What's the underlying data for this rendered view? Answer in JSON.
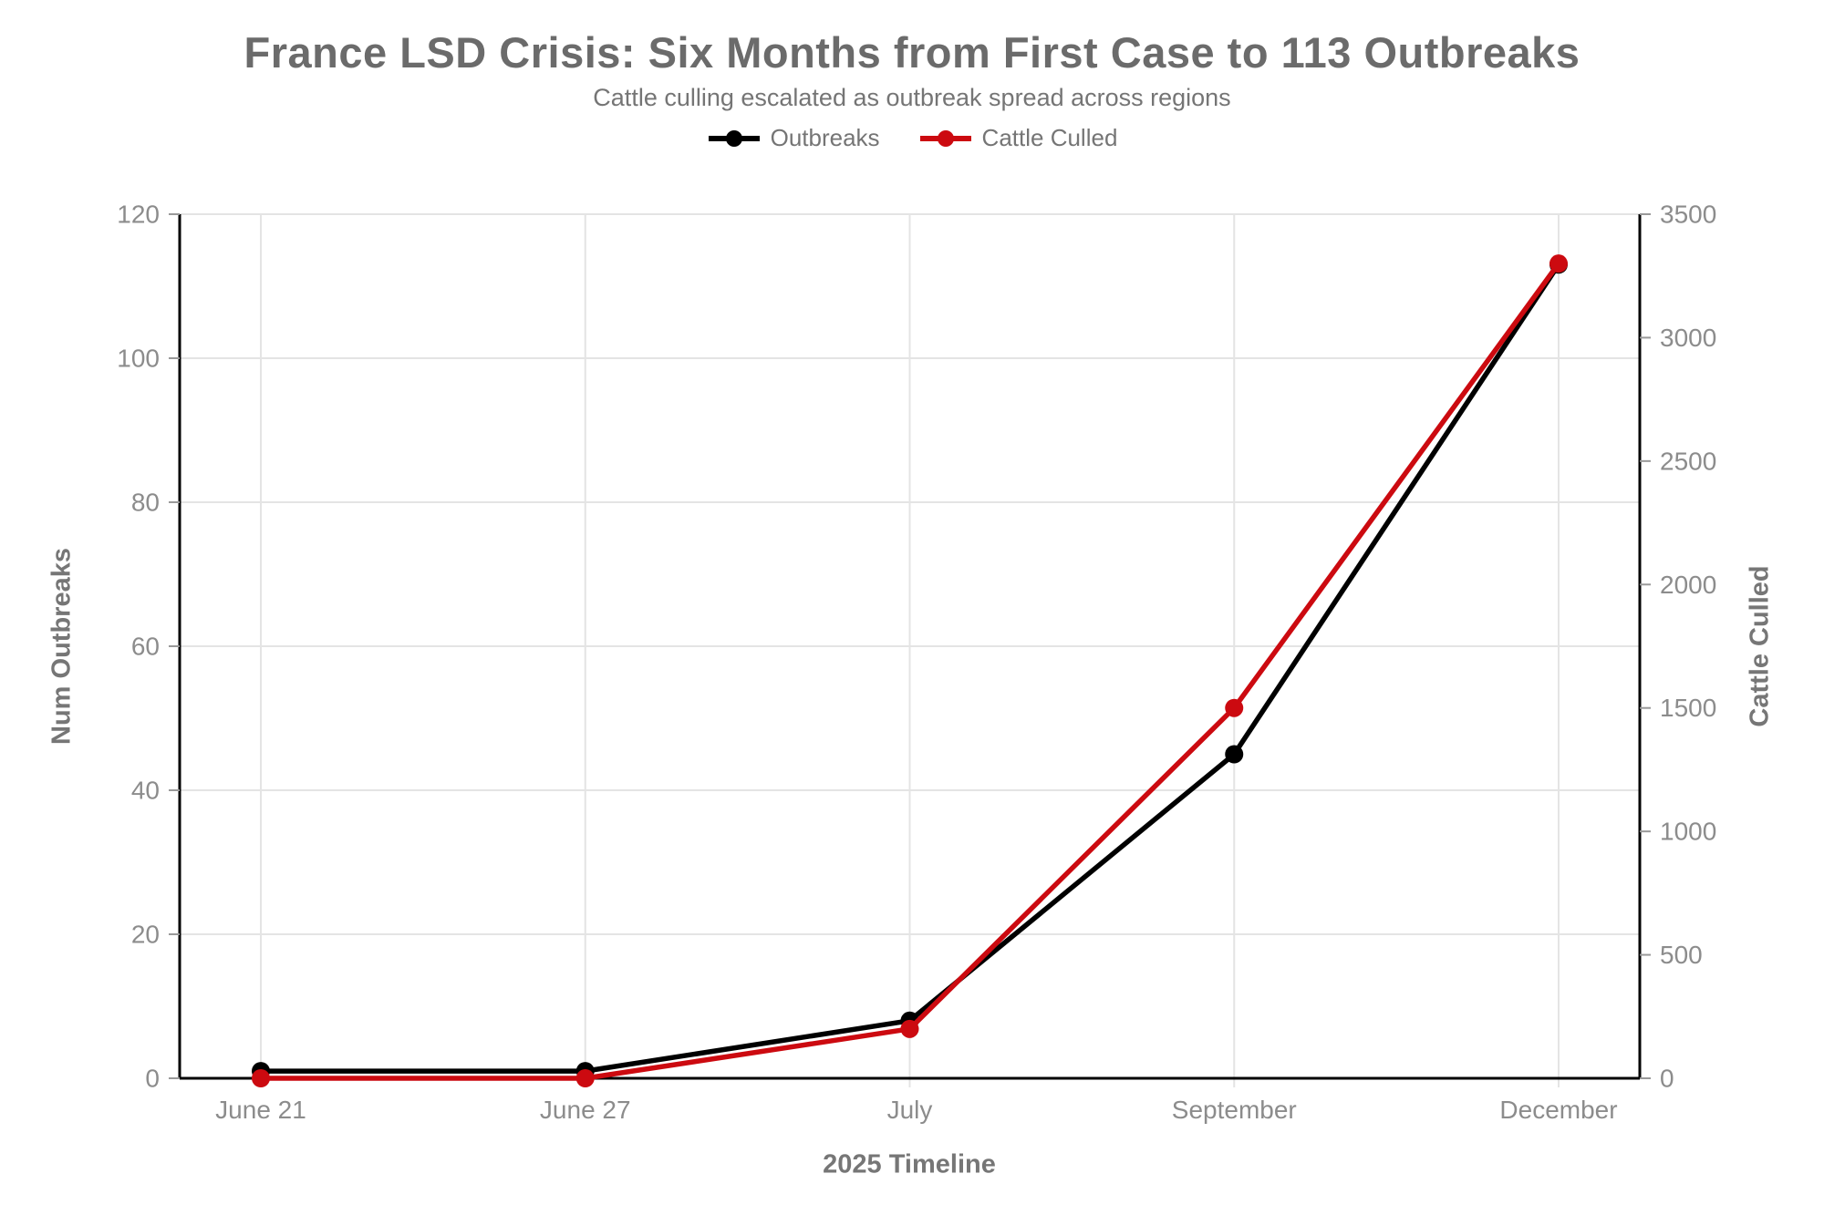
{
  "chart_data": {
    "type": "line",
    "title": "France LSD Crisis: Six Months from First Case to 113 Outbreaks",
    "subtitle": "Cattle culling escalated as outbreak spread across regions",
    "xlabel": "2025 Timeline",
    "ylabel_left": "Num Outbreaks",
    "ylabel_right": "Cattle Culled",
    "categories": [
      "June 21",
      "June 27",
      "July",
      "September",
      "December"
    ],
    "series": [
      {
        "name": "Outbreaks",
        "axis": "left",
        "color": "#000000",
        "values": [
          1,
          1,
          8,
          45,
          113
        ]
      },
      {
        "name": "Cattle Culled",
        "axis": "right",
        "color": "#cc0a10",
        "values": [
          0,
          0,
          200,
          1500,
          3300
        ]
      }
    ],
    "left_axis": {
      "min": 0,
      "max": 120,
      "ticks": [
        0,
        20,
        40,
        60,
        80,
        100,
        120
      ]
    },
    "right_axis": {
      "min": 0,
      "max": 3500,
      "ticks": [
        0,
        500,
        1000,
        1500,
        2000,
        2500,
        3000,
        3500
      ]
    },
    "grid": true,
    "legend_position": "top-center",
    "colors": {
      "grid": "#e4e4e4",
      "spine": "#000000",
      "tick_mark": "#999999",
      "tick_label": "#8c8c8c",
      "title": "#6b6b6b",
      "subtitle": "#757575",
      "axis_title": "#767676"
    }
  }
}
